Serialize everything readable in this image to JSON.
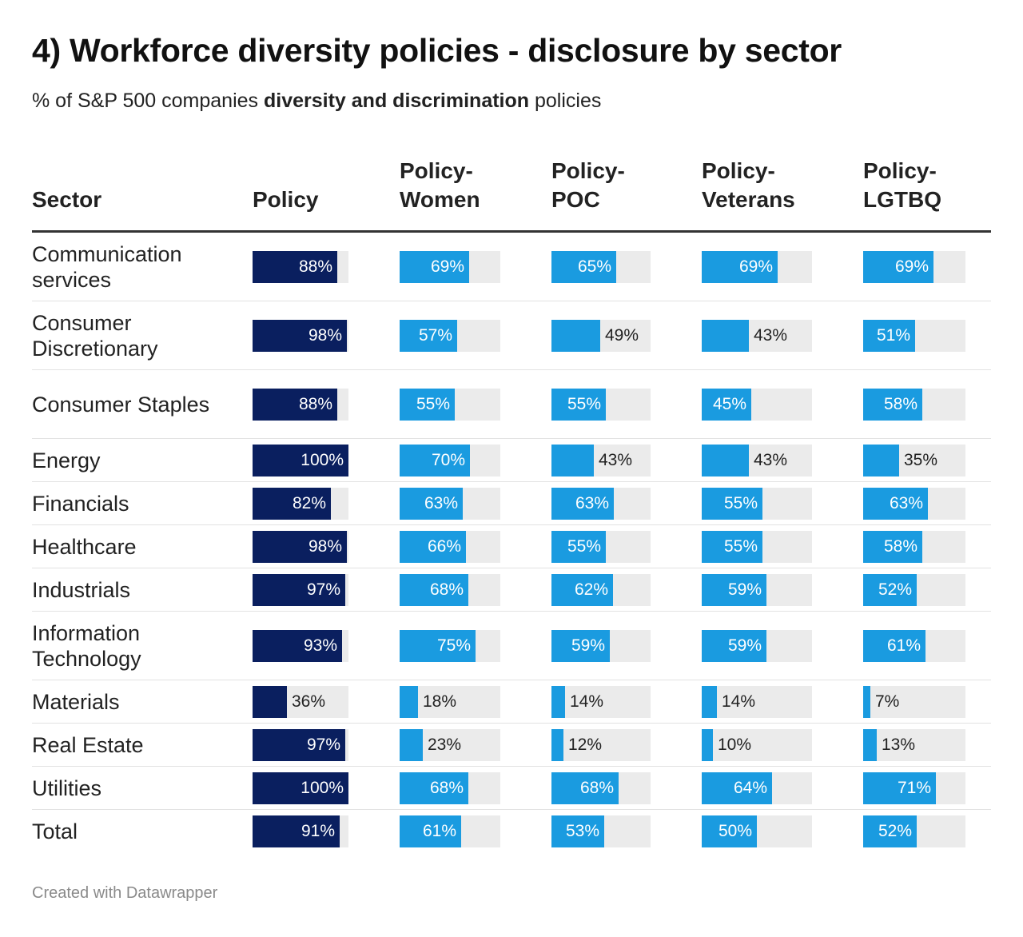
{
  "title": "4) Workforce diversity policies - disclosure by sector",
  "subtitle": {
    "prefix": "% of S&P 500 companies ",
    "bold": "diversity and discrimination",
    "suffix": " policies"
  },
  "footer": "Created with Datawrapper",
  "colors": {
    "policy": "#0a1f5f",
    "other": "#1a9be0",
    "track": "#ebebeb",
    "rule": "#333333"
  },
  "chart_data": {
    "type": "table",
    "first_header": "Sector",
    "columns": [
      {
        "key": "policy",
        "label": "Policy",
        "color": "#0a1f5f"
      },
      {
        "key": "women",
        "label": "Policy-\nWomen",
        "color": "#1a9be0"
      },
      {
        "key": "poc",
        "label": "Policy-\nPOC",
        "color": "#1a9be0"
      },
      {
        "key": "veterans",
        "label": "Policy-\nVeterans",
        "color": "#1a9be0"
      },
      {
        "key": "lgtbq",
        "label": "Policy-\nLGTBQ",
        "color": "#1a9be0"
      }
    ],
    "rows": [
      {
        "sector": "Communication services",
        "values": [
          88,
          69,
          65,
          69,
          69
        ]
      },
      {
        "sector": "Consumer Discretionary",
        "values": [
          98,
          57,
          49,
          43,
          51
        ]
      },
      {
        "sector": "Consumer Staples",
        "values": [
          88,
          55,
          55,
          45,
          58
        ]
      },
      {
        "sector": "Energy",
        "values": [
          100,
          70,
          43,
          43,
          35
        ]
      },
      {
        "sector": "Financials",
        "values": [
          82,
          63,
          63,
          55,
          63
        ]
      },
      {
        "sector": "Healthcare",
        "values": [
          98,
          66,
          55,
          55,
          58
        ]
      },
      {
        "sector": "Industrials",
        "values": [
          97,
          68,
          62,
          59,
          52
        ]
      },
      {
        "sector": "Information Technology",
        "values": [
          93,
          75,
          59,
          59,
          61
        ]
      },
      {
        "sector": "Materials",
        "values": [
          36,
          18,
          14,
          14,
          7
        ]
      },
      {
        "sector": "Real Estate",
        "values": [
          97,
          23,
          12,
          10,
          13
        ]
      },
      {
        "sector": "Utilities",
        "values": [
          100,
          68,
          68,
          64,
          71
        ]
      },
      {
        "sector": "Total",
        "values": [
          91,
          61,
          53,
          50,
          52
        ]
      }
    ],
    "unit": "%",
    "xlim": [
      0,
      100
    ]
  }
}
